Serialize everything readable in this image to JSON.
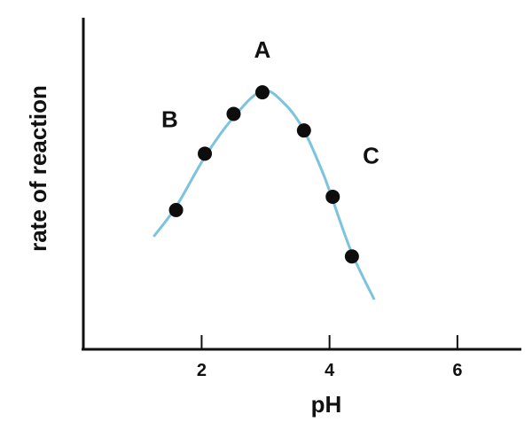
{
  "chart_data": {
    "type": "scatter",
    "xlabel": "pH",
    "ylabel": "rate of reaction",
    "x_ticks": [
      2,
      4,
      6
    ],
    "xlim": [
      0.15,
      7.0
    ],
    "ylim": [
      0,
      10
    ],
    "grid": false,
    "points": [
      {
        "x": 1.6,
        "y": 4.2
      },
      {
        "x": 2.05,
        "y": 5.9
      },
      {
        "x": 2.5,
        "y": 7.1
      },
      {
        "x": 2.95,
        "y": 7.75
      },
      {
        "x": 3.6,
        "y": 6.6
      },
      {
        "x": 4.05,
        "y": 4.6
      },
      {
        "x": 4.35,
        "y": 2.8
      }
    ],
    "curve": {
      "x": [
        1.25,
        1.6,
        2.05,
        2.5,
        2.95,
        3.3,
        3.6,
        3.9,
        4.05,
        4.35,
        4.7
      ],
      "y": [
        3.4,
        4.3,
        5.8,
        7.0,
        7.8,
        7.4,
        6.6,
        5.3,
        4.5,
        2.9,
        1.5
      ]
    },
    "annotations": [
      {
        "text": "A",
        "x": 2.95,
        "y": 8.8
      },
      {
        "text": "B",
        "x": 1.5,
        "y": 6.7
      },
      {
        "text": "C",
        "x": 4.65,
        "y": 5.6
      }
    ],
    "colors": {
      "curve": "#7cc3dd",
      "points": "#0d0d0d",
      "axes": "#111111"
    }
  }
}
